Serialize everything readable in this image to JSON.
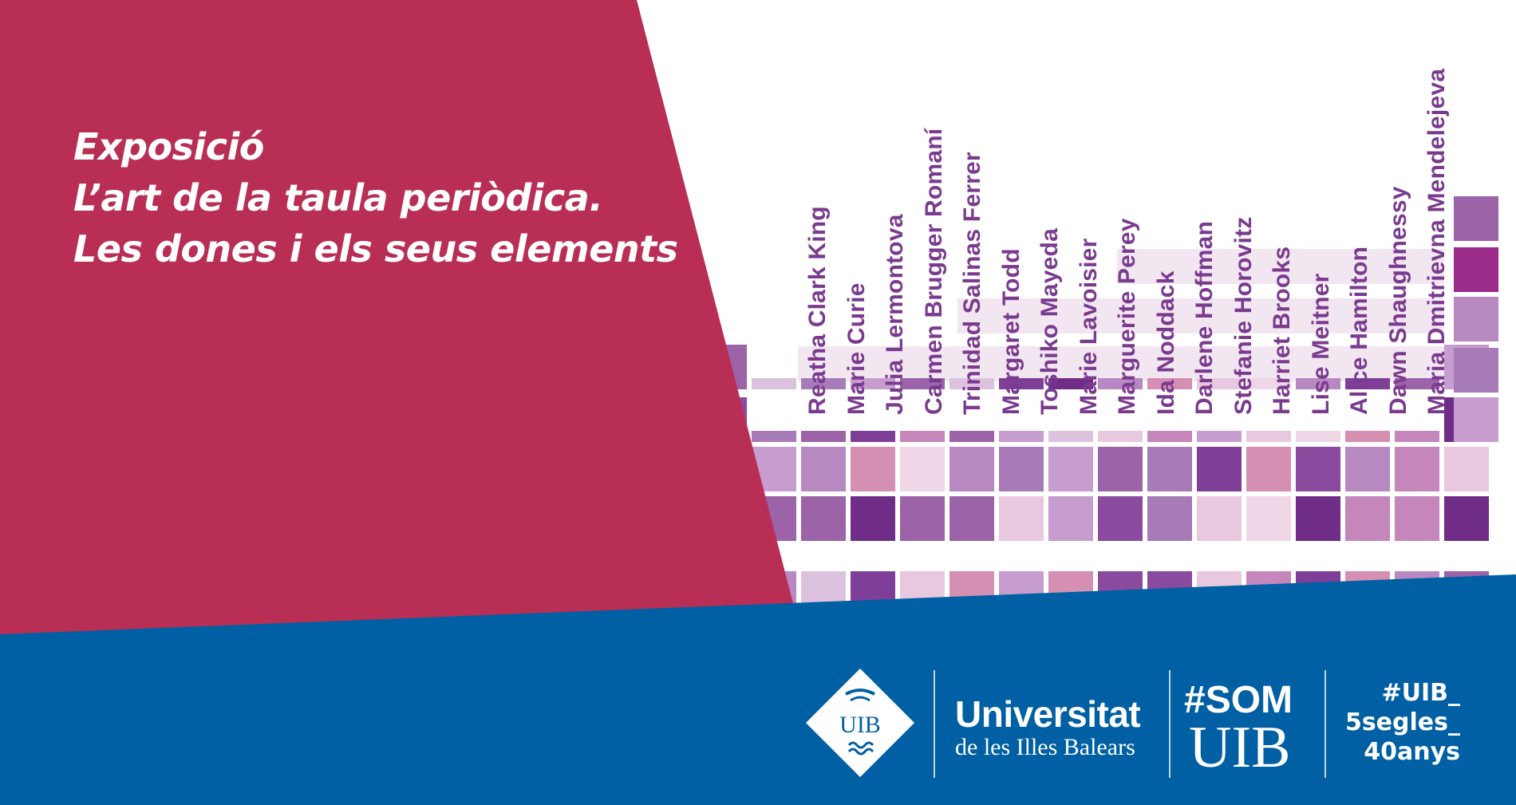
{
  "title": {
    "line1": "Exposició",
    "line2": "L’art de la taula periòdica.",
    "line3": "Les dones i els seus elements"
  },
  "scientists": [
    "Reatha Clark King",
    "Marie Curie",
    "Julia Lermontova",
    "Carmen Brugger Romaní",
    "Trinidad Salinas Ferrer",
    "Margaret Todd",
    "Toshiko Mayeda",
    "Marie Lavoisier",
    "Marguerite Perey",
    "Ida Noddack",
    "Darlene Hoffman",
    "Stefanie Horovitz",
    "Harriet Brooks",
    "Lise Meitner",
    "Alice Hamilton",
    "Dawn Shaughnessy",
    "Maria Dmitrievna Mendelejeva"
  ],
  "logo": {
    "emblem_text": "UIB",
    "university_name": "Universitat",
    "university_subtitle": "de les Illes Balears"
  },
  "som_uib": {
    "line1": "#SOM",
    "line2": "UIB"
  },
  "hashtag": {
    "line1": "#UIB_",
    "line2": "5segles_",
    "line3": "40anys"
  },
  "colors": {
    "crimson": "#b82e55",
    "blue": "#0060a3",
    "purple_text": "#7a3b8f",
    "white": "#ffffff"
  }
}
